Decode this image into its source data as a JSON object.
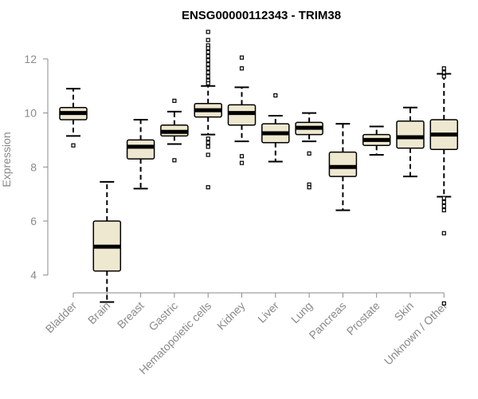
{
  "chart_data": {
    "type": "box",
    "title": "ENSG00000112343 - TRIM38",
    "ylabel": "Expression",
    "xlabel": "",
    "ylim": [
      3.4,
      13.0
    ],
    "yticks": [
      4,
      6,
      8,
      10,
      12
    ],
    "grid": false,
    "categories": [
      "Bladder",
      "Brain",
      "Breast",
      "Gastric",
      "Hematopoietic cells",
      "Kidney",
      "Liver",
      "Lung",
      "Pancreas",
      "Prostate",
      "Skin",
      "Unknown / Other"
    ],
    "boxes": [
      {
        "whisker_low": 9.15,
        "q1": 9.75,
        "median": 10.0,
        "q3": 10.2,
        "whisker_high": 10.9,
        "outliers": [
          8.8
        ]
      },
      {
        "whisker_low": 3.0,
        "q1": 4.15,
        "median": 5.05,
        "q3": 6.0,
        "whisker_high": 7.45,
        "outliers": []
      },
      {
        "whisker_low": 7.2,
        "q1": 8.3,
        "median": 8.75,
        "q3": 9.0,
        "whisker_high": 9.75,
        "outliers": []
      },
      {
        "whisker_low": 8.85,
        "q1": 9.15,
        "median": 9.3,
        "q3": 9.55,
        "whisker_high": 10.05,
        "outliers": [
          10.45,
          8.25
        ]
      },
      {
        "whisker_low": 9.2,
        "q1": 9.85,
        "median": 10.1,
        "q3": 10.35,
        "whisker_high": 11.0,
        "outliers": [
          13.0,
          12.7,
          12.5,
          12.4,
          12.25,
          12.1,
          11.95,
          11.8,
          11.65,
          11.5,
          11.35,
          11.2,
          11.1,
          9.05,
          8.9,
          8.75,
          8.45,
          7.25
        ]
      },
      {
        "whisker_low": 8.95,
        "q1": 9.55,
        "median": 10.0,
        "q3": 10.3,
        "whisker_high": 10.95,
        "outliers": [
          12.05,
          11.65,
          8.4,
          8.15
        ]
      },
      {
        "whisker_low": 8.2,
        "q1": 8.9,
        "median": 9.25,
        "q3": 9.6,
        "whisker_high": 9.9,
        "outliers": [
          10.65
        ]
      },
      {
        "whisker_low": 8.95,
        "q1": 9.2,
        "median": 9.45,
        "q3": 9.65,
        "whisker_high": 10.0,
        "outliers": [
          8.5,
          7.35,
          7.25
        ]
      },
      {
        "whisker_low": 6.4,
        "q1": 7.65,
        "median": 8.0,
        "q3": 8.55,
        "whisker_high": 9.6,
        "outliers": []
      },
      {
        "whisker_low": 8.45,
        "q1": 8.8,
        "median": 9.0,
        "q3": 9.2,
        "whisker_high": 9.5,
        "outliers": []
      },
      {
        "whisker_low": 7.65,
        "q1": 8.7,
        "median": 9.1,
        "q3": 9.7,
        "whisker_high": 10.2,
        "outliers": []
      },
      {
        "whisker_low": 6.9,
        "q1": 8.65,
        "median": 9.2,
        "q3": 9.75,
        "whisker_high": 11.45,
        "outliers": [
          11.65,
          11.5,
          11.35,
          6.85,
          6.7,
          6.55,
          6.4,
          5.55,
          2.95
        ]
      }
    ]
  },
  "colors": {
    "box_fill": "#efe8d0",
    "stroke": "#000000",
    "axis": "#8a8a8a",
    "text_muted": "#8a8a8a"
  }
}
